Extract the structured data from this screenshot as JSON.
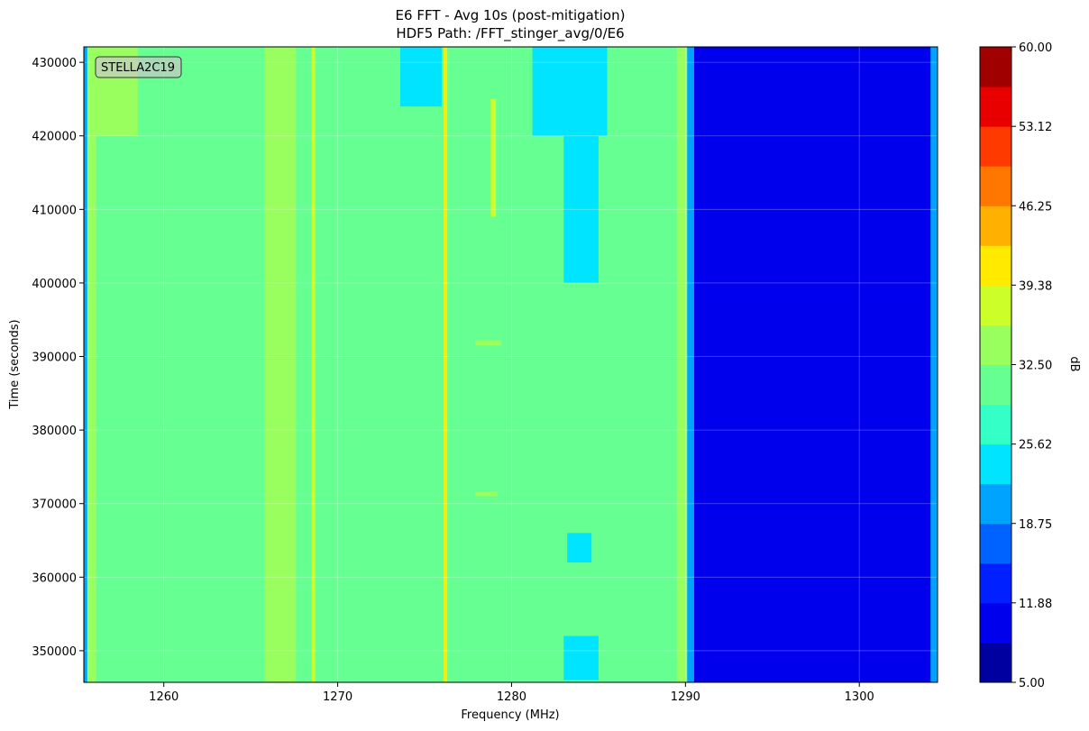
{
  "chart_data": {
    "type": "heatmap",
    "title": "E6 FFT - Avg 10s (post-mitigation)",
    "subtitle": "HDF5 Path: /FFT_stinger_avg/0/E6",
    "x_label": "Frequency (MHz)",
    "y_label": "Time (seconds)",
    "colorbar_label": "dB",
    "annotation": "STELLA2C19",
    "xlim": [
      1255.4,
      1304.5
    ],
    "ylim": [
      345700,
      432100
    ],
    "xticks": [
      1260,
      1270,
      1280,
      1290,
      1300
    ],
    "yticks": [
      350000,
      360000,
      370000,
      380000,
      390000,
      400000,
      410000,
      420000,
      430000
    ],
    "grid": true,
    "zlim": [
      5,
      60
    ],
    "zticks": [
      {
        "value": 5,
        "label": "5.00"
      },
      {
        "value": 11.88,
        "label": "11.88"
      },
      {
        "value": 18.75,
        "label": "18.75"
      },
      {
        "value": 25.62,
        "label": "25.62"
      },
      {
        "value": 32.5,
        "label": "32.50"
      },
      {
        "value": 39.38,
        "label": "39.38"
      },
      {
        "value": 46.25,
        "label": "46.25"
      },
      {
        "value": 53.12,
        "label": "53.12"
      },
      {
        "value": 60,
        "label": "60.00"
      }
    ],
    "colormap": [
      "#0000a0",
      "#0000ec",
      "#0020ff",
      "#0062ff",
      "#00a4ff",
      "#00e4ff",
      "#33ffc6",
      "#66ff92",
      "#99ff5e",
      "#ccff2a",
      "#ffea00",
      "#ffb000",
      "#ff7600",
      "#ff3a00",
      "#e80000",
      "#a00000"
    ],
    "regions": [
      {
        "x": [
          1255.4,
          1290.2
        ],
        "y": [
          345700,
          432100
        ],
        "value": 29.5
      },
      {
        "x": [
          1290.2,
          1304.5
        ],
        "y": [
          345700,
          432100
        ],
        "value": 10
      },
      {
        "x": [
          1255.4,
          1255.6
        ],
        "y": [
          345700,
          432100
        ],
        "value": 20
      },
      {
        "x": [
          1255.6,
          1256.1
        ],
        "y": [
          345700,
          432100
        ],
        "value": 33
      },
      {
        "x": [
          1255.7,
          1258.5
        ],
        "y": [
          420000,
          432100
        ],
        "value": 33
      },
      {
        "x": [
          1265.8,
          1267.6
        ],
        "y": [
          345700,
          432100
        ],
        "value": 33
      },
      {
        "x": [
          1268.5,
          1268.7
        ],
        "y": [
          345700,
          432100
        ],
        "value": 38
      },
      {
        "x": [
          1276.1,
          1276.3
        ],
        "y": [
          345700,
          432100
        ],
        "value": 41
      },
      {
        "x": [
          1273.6,
          1276
        ],
        "y": [
          424000,
          432100
        ],
        "value": 24
      },
      {
        "x": [
          1281.2,
          1285.5
        ],
        "y": [
          420000,
          432100
        ],
        "value": 24
      },
      {
        "x": [
          1283,
          1285
        ],
        "y": [
          346000,
          352000
        ],
        "value": 24
      },
      {
        "x": [
          1283.2,
          1284.6
        ],
        "y": [
          362000,
          366000
        ],
        "value": 24
      },
      {
        "x": [
          1283,
          1285
        ],
        "y": [
          400000,
          420000
        ],
        "value": 24
      },
      {
        "x": [
          1278.8,
          1279.1
        ],
        "y": [
          409000,
          425000
        ],
        "value": 37
      },
      {
        "x": [
          1277.9,
          1279.4
        ],
        "y": [
          391500,
          392200
        ],
        "value": 35
      },
      {
        "x": [
          1277.9,
          1279.2
        ],
        "y": [
          371000,
          371600
        ],
        "value": 35
      },
      {
        "x": [
          1289.5,
          1290.1
        ],
        "y": [
          345700,
          432100
        ],
        "value": 33
      },
      {
        "x": [
          1290.1,
          1290.5
        ],
        "y": [
          345700,
          432100
        ],
        "value": 20
      },
      {
        "x": [
          1304.1,
          1304.5
        ],
        "y": [
          345700,
          432100
        ],
        "value": 20
      }
    ]
  }
}
